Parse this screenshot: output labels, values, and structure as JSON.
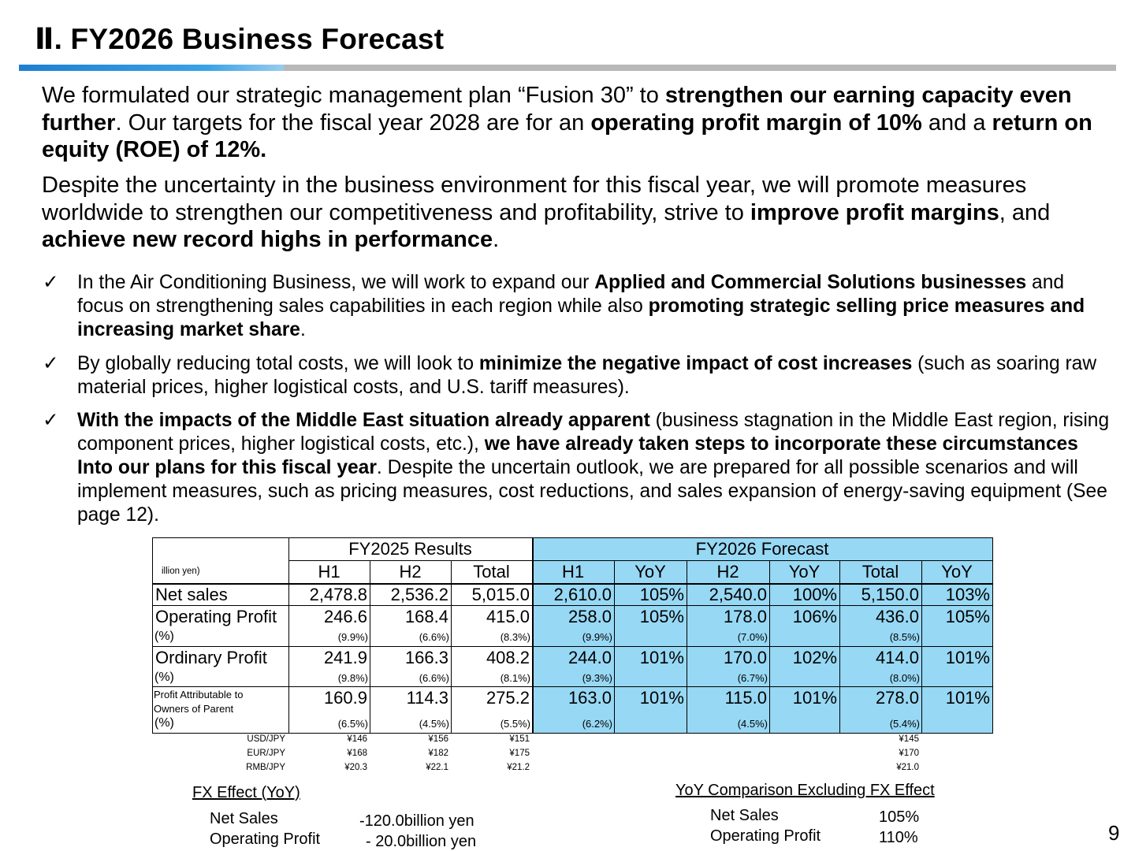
{
  "title": "Ⅱ. FY2026 Business Forecast",
  "intro": {
    "p1": [
      {
        "t": "We formulated our strategic management plan “Fusion 30” to ",
        "b": false
      },
      {
        "t": "strengthen our earning capacity even further",
        "b": true
      },
      {
        "t": ". Our targets for the fiscal year 2028 are for an ",
        "b": false
      },
      {
        "t": "operating profit margin of 10%",
        "b": true
      },
      {
        "t": " and a ",
        "b": false
      },
      {
        "t": "return on equity (ROE) of 12%.",
        "b": true
      }
    ],
    "p2": [
      {
        "t": "Despite the uncertainty in the business environment for this fiscal year, we will promote measures worldwide to strengthen our competitiveness and profitability, strive to ",
        "b": false
      },
      {
        "t": "improve profit margins",
        "b": true
      },
      {
        "t": ", and ",
        "b": false
      },
      {
        "t": "achieve new record highs in performance",
        "b": true
      },
      {
        "t": ".",
        "b": false
      }
    ]
  },
  "check_symbol": "✓",
  "bullets": [
    [
      {
        "t": "In the Air Conditioning Business, we will work to expand our ",
        "b": false
      },
      {
        "t": "Applied and Commercial Solutions businesses",
        "b": true
      },
      {
        "t": " and focus on strengthening sales capabilities in each region while also ",
        "b": false
      },
      {
        "t": "promoting strategic selling price measures and increasing market share",
        "b": true
      },
      {
        "t": ".",
        "b": false
      }
    ],
    [
      {
        "t": "By globally reducing total costs, we will look to ",
        "b": false
      },
      {
        "t": "minimize the negative impact of cost increases",
        "b": true
      },
      {
        "t": " (such as soaring raw material prices, higher logistical costs, and U.S. tariff measures).",
        "b": false
      }
    ],
    [
      {
        "t": "With the impacts of the Middle East situation already apparent",
        "b": true
      },
      {
        "t": " (business stagnation in the Middle East region, rising component prices, higher logistical costs, etc.), ",
        "b": false
      },
      {
        "t": "we have already taken steps to incorporate these circumstances Into our plans for this fiscal year",
        "b": true
      },
      {
        "t": ". Despite the uncertain outlook, we are prepared for all possible scenarios and will implement measures, such as pricing measures, cost reductions, and sales expansion of energy-saving equipment (See page 12).",
        "b": false
      }
    ]
  ],
  "table": {
    "unit": "illion yen)",
    "group_results": "FY2025 Results",
    "group_forecast": "FY2026 Forecast",
    "cols": [
      "H1",
      "H2",
      "Total",
      "H1",
      "YoY",
      "H2",
      "YoY",
      "Total",
      "YoY"
    ],
    "rows": [
      {
        "label": "Net sales",
        "values": [
          "2,478.8",
          "2,536.2",
          "5,015.0",
          "2,610.0",
          "105%",
          "2,540.0",
          "100%",
          "5,150.0",
          "103%"
        ]
      },
      {
        "label": "Operating Profit",
        "sub_label": "(%)",
        "values": [
          "246.6",
          "168.4",
          "415.0",
          "258.0",
          "105%",
          "178.0",
          "106%",
          "436.0",
          "105%"
        ],
        "pcts": [
          "(9.9%)",
          "(6.6%)",
          "(8.3%)",
          "(9.9%)",
          "",
          "(7.0%)",
          "",
          "(8.5%)",
          ""
        ]
      },
      {
        "label": "Ordinary Profit",
        "sub_label": "(%)",
        "values": [
          "241.9",
          "166.3",
          "408.2",
          "244.0",
          "101%",
          "170.0",
          "102%",
          "414.0",
          "101%"
        ],
        "pcts": [
          "(9.8%)",
          "(6.6%)",
          "(8.1%)",
          "(9.3%)",
          "",
          "(6.7%)",
          "",
          "(8.0%)",
          ""
        ]
      },
      {
        "label_l1": "Profit Attributable to",
        "label_l2": "Owners of Parent",
        "sub_label": "(%)",
        "values": [
          "160.9",
          "114.3",
          "275.2",
          "163.0",
          "101%",
          "115.0",
          "101%",
          "278.0",
          "101%"
        ],
        "pcts": [
          "(6.5%)",
          "(4.5%)",
          "(5.5%)",
          "(6.2%)",
          "",
          "(4.5%)",
          "",
          "(5.4%)",
          ""
        ]
      }
    ],
    "fx": [
      {
        "label": "USD/JPY",
        "r1": "¥146",
        "r2": "¥156",
        "r3": "¥151",
        "f": "¥145"
      },
      {
        "label": "EUR/JPY",
        "r1": "¥168",
        "r2": "¥182",
        "r3": "¥175",
        "f": "¥170"
      },
      {
        "label": "RMB/JPY",
        "r1": "¥20.3",
        "r2": "¥22.1",
        "r3": "¥21.2",
        "f": "¥21.0"
      }
    ]
  },
  "fx_effect": {
    "heading": "FX Effect (YoY)",
    "net_sales_label": "Net Sales",
    "net_sales_value": "-120.0billion yen",
    "op_label": "Operating Profit",
    "op_value": "- 20.0billion yen"
  },
  "yoy_ex_fx": {
    "heading": "YoY Comparison Excluding FX Effect",
    "net_sales_label": "Net Sales",
    "net_sales_value": "105%",
    "op_label": "Operating Profit",
    "op_value": "110%"
  },
  "page_number": "9",
  "colors": {
    "forecast_bg": "#97d8f4",
    "rule_blue": "#1e7fd0",
    "rule_grey": "#b8b8b8"
  }
}
